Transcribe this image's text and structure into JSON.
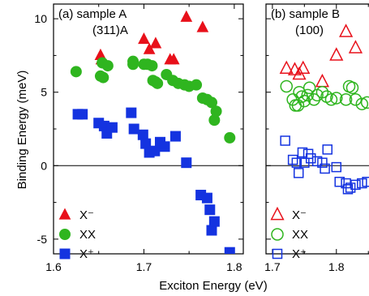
{
  "chart_data": {
    "type": "scatter",
    "ylabel": "Binding Energy (meV)",
    "xlabel": "Exciton Energy (eV)",
    "ylim": [
      -6,
      11
    ],
    "yticks": [
      10,
      5,
      0,
      -5
    ],
    "ytick_labels": [
      "10",
      "5",
      "0",
      "-5"
    ],
    "panels": [
      {
        "label": "(a) sample A",
        "sublabel": "(311)A",
        "xlim": [
          1.6,
          1.81
        ],
        "xticks": [
          1.6,
          1.7,
          1.8
        ],
        "xtick_labels": [
          "1.6",
          "1.7",
          "1.8"
        ],
        "marker_fill": "filled",
        "series": [
          {
            "name": "X⁻",
            "marker": "triangle",
            "color": "#e8101a",
            "points": [
              [
                1.652,
                7.5
              ],
              [
                1.653,
                7.2
              ],
              [
                1.7,
                8.6
              ],
              [
                1.706,
                7.9
              ],
              [
                1.713,
                8.3
              ],
              [
                1.729,
                7.2
              ],
              [
                1.733,
                7.2
              ],
              [
                1.747,
                10.1
              ],
              [
                1.765,
                9.4
              ]
            ]
          },
          {
            "name": "XX",
            "marker": "circle",
            "color": "#2fb51f",
            "points": [
              [
                1.625,
                6.4
              ],
              [
                1.652,
                6.1
              ],
              [
                1.654,
                7.0
              ],
              [
                1.655,
                6.0
              ],
              [
                1.66,
                6.8
              ],
              [
                1.688,
                7.1
              ],
              [
                1.688,
                6.9
              ],
              [
                1.7,
                6.9
              ],
              [
                1.704,
                6.9
              ],
              [
                1.709,
                6.8
              ],
              [
                1.71,
                5.8
              ],
              [
                1.713,
                5.7
              ],
              [
                1.715,
                5.6
              ],
              [
                1.725,
                6.2
              ],
              [
                1.732,
                5.8
              ],
              [
                1.738,
                5.6
              ],
              [
                1.745,
                5.5
              ],
              [
                1.75,
                5.4
              ],
              [
                1.758,
                5.5
              ],
              [
                1.765,
                4.6
              ],
              [
                1.77,
                4.5
              ],
              [
                1.775,
                4.3
              ],
              [
                1.778,
                3.1
              ],
              [
                1.78,
                3.7
              ],
              [
                1.795,
                1.9
              ]
            ]
          },
          {
            "name": "X⁺",
            "marker": "square",
            "color": "#1433e0",
            "points": [
              [
                1.627,
                3.5
              ],
              [
                1.632,
                3.5
              ],
              [
                1.65,
                2.9
              ],
              [
                1.656,
                2.7
              ],
              [
                1.659,
                2.2
              ],
              [
                1.665,
                2.6
              ],
              [
                1.686,
                3.6
              ],
              [
                1.689,
                2.5
              ],
              [
                1.699,
                2.1
              ],
              [
                1.702,
                1.5
              ],
              [
                1.706,
                0.9
              ],
              [
                1.712,
                1.0
              ],
              [
                1.718,
                1.6
              ],
              [
                1.723,
                1.3
              ],
              [
                1.735,
                2.0
              ],
              [
                1.747,
                0.2
              ],
              [
                1.763,
                -2.0
              ],
              [
                1.77,
                -2.2
              ],
              [
                1.773,
                -3.0
              ],
              [
                1.775,
                -4.4
              ],
              [
                1.778,
                -3.8
              ],
              [
                1.795,
                -5.9
              ]
            ]
          }
        ]
      },
      {
        "label": "(b) sample B",
        "sublabel": "(100)",
        "xlim": [
          1.69,
          1.87
        ],
        "xticks": [
          1.7,
          1.8
        ],
        "xtick_labels": [
          "1.7",
          "1.8"
        ],
        "marker_fill": "open",
        "series": [
          {
            "name": "X⁻",
            "marker": "triangle",
            "color": "#e8101a",
            "points": [
              [
                1.722,
                6.6
              ],
              [
                1.735,
                6.5
              ],
              [
                1.742,
                6.2
              ],
              [
                1.748,
                6.6
              ],
              [
                1.778,
                5.7
              ],
              [
                1.8,
                7.5
              ],
              [
                1.815,
                9.1
              ],
              [
                1.83,
                8.0
              ]
            ]
          },
          {
            "name": "XX",
            "marker": "circle",
            "color": "#2fb51f",
            "points": [
              [
                1.722,
                5.4
              ],
              [
                1.732,
                4.5
              ],
              [
                1.736,
                4.1
              ],
              [
                1.74,
                4.1
              ],
              [
                1.742,
                5.0
              ],
              [
                1.746,
                4.7
              ],
              [
                1.75,
                4.4
              ],
              [
                1.755,
                4.8
              ],
              [
                1.758,
                5.3
              ],
              [
                1.765,
                4.5
              ],
              [
                1.77,
                4.8
              ],
              [
                1.778,
                5.0
              ],
              [
                1.785,
                4.7
              ],
              [
                1.792,
                4.5
              ],
              [
                1.8,
                4.6
              ],
              [
                1.815,
                4.5
              ],
              [
                1.82,
                5.4
              ],
              [
                1.825,
                5.3
              ],
              [
                1.83,
                4.5
              ],
              [
                1.84,
                4.2
              ],
              [
                1.848,
                4.3
              ]
            ]
          },
          {
            "name": "X⁺",
            "marker": "square",
            "color": "#1433e0",
            "points": [
              [
                1.72,
                1.7
              ],
              [
                1.732,
                0.4
              ],
              [
                1.738,
                0.2
              ],
              [
                1.741,
                -0.5
              ],
              [
                1.747,
                0.9
              ],
              [
                1.75,
                0.2
              ],
              [
                1.756,
                0.8
              ],
              [
                1.76,
                0.5
              ],
              [
                1.77,
                0.3
              ],
              [
                1.778,
                0.2
              ],
              [
                1.782,
                -0.2
              ],
              [
                1.786,
                1.1
              ],
              [
                1.8,
                -0.1
              ],
              [
                1.805,
                -1.1
              ],
              [
                1.815,
                -1.2
              ],
              [
                1.818,
                -1.6
              ],
              [
                1.822,
                -1.5
              ],
              [
                1.83,
                -1.3
              ],
              [
                1.84,
                -1.2
              ],
              [
                1.848,
                -1.1
              ]
            ]
          }
        ]
      }
    ]
  }
}
